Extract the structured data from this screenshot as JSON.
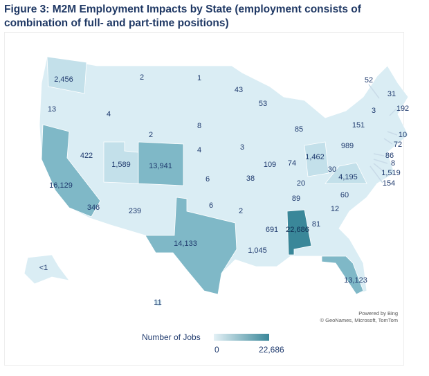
{
  "title": "Figure 3: M2M Employment Impacts by State (employment consists of combination of full- and part-time positions)",
  "credits": {
    "line1": "Powered by Bing",
    "line2": "© GeoNames, Microsoft, TomTom"
  },
  "legend": {
    "title": "Number of Jobs",
    "min": "0",
    "max": "22,686",
    "color_min": "#e4f1f6",
    "color_max": "#3a8799"
  },
  "colors": {
    "base": "#daedf4",
    "light": "#c3e0ea",
    "mid": "#7fb8c7",
    "dark": "#3a8799",
    "border": "#ffffff",
    "label": "#1f3a6e"
  },
  "labels": [
    "2,456",
    "13",
    "16,129",
    "422",
    "4",
    "2",
    "2",
    "1,589",
    "346",
    "13,941",
    "239",
    "1",
    "8",
    "4",
    "6",
    "6",
    "14,133",
    "43",
    "3",
    "38",
    "2",
    "1,045",
    "53",
    "109",
    "85",
    "74",
    "1,462",
    "20",
    "89",
    "691",
    "22,686",
    "81",
    "13,123",
    "12",
    "60",
    "4,195",
    "30",
    "989",
    "151",
    "3",
    "52",
    "31",
    "192",
    "10",
    "72",
    "86",
    "8",
    "1,519",
    "154",
    "<1",
    "11"
  ]
}
